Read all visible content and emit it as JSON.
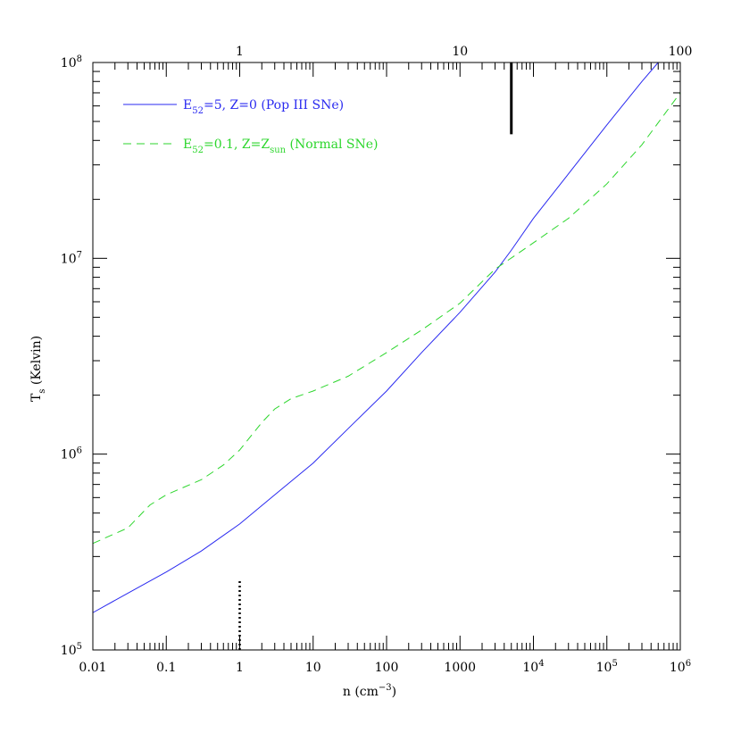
{
  "chart_data": {
    "type": "line",
    "xlabel": {
      "main": "n (cm",
      "sup": "−3",
      "close": ")"
    },
    "ylabel": {
      "main": "T",
      "sub": "s",
      "rest": " (Kelvin)"
    },
    "x_scale": "log",
    "y_scale": "log",
    "xlim": [
      0.01,
      1000000
    ],
    "ylim": [
      100000,
      100000000
    ],
    "x_tick_labels": [
      {
        "v": 0.01,
        "text": "0.01"
      },
      {
        "v": 0.1,
        "text": "0.1"
      },
      {
        "v": 1,
        "text": "1"
      },
      {
        "v": 10,
        "text": "10"
      },
      {
        "v": 100,
        "text": "100"
      },
      {
        "v": 1000,
        "text": "1000"
      },
      {
        "v": 10000,
        "base": "10",
        "sup": "4"
      },
      {
        "v": 100000,
        "base": "10",
        "sup": "5"
      },
      {
        "v": 1000000,
        "base": "10",
        "sup": "6"
      }
    ],
    "y_tick_labels": [
      {
        "v": 100000,
        "base": "10",
        "sup": "5"
      },
      {
        "v": 1000000,
        "base": "10",
        "sup": "6"
      },
      {
        "v": 10000000,
        "base": "10",
        "sup": "7"
      },
      {
        "v": 100000000,
        "base": "10",
        "sup": "8"
      }
    ],
    "top_tick_labels": [
      {
        "text": "1",
        "at_n": 1
      },
      {
        "text": "10",
        "at_n": 1000
      },
      {
        "text": "100",
        "at_n": 1000000
      }
    ],
    "series": [
      {
        "legend": {
          "pre": "E",
          "sub1": "52",
          "mid": "=5, Z=0 (Pop III SNe)"
        },
        "color": "#2a2af0",
        "style": "solid",
        "x": [
          0.01,
          0.03,
          0.1,
          0.3,
          1,
          3,
          10,
          30,
          100,
          300,
          1000,
          3000,
          5000,
          10000,
          30000,
          100000,
          300000,
          500000
        ],
        "y": [
          155000,
          195000,
          250000,
          320000,
          440000,
          620000,
          900000,
          1350000,
          2100000,
          3300000,
          5300000,
          8500000,
          11000000,
          16000000,
          27000000,
          48000000,
          80000000,
          100000000
        ]
      },
      {
        "legend": {
          "pre": "E",
          "sub1": "52",
          "mid": "=0.1, Z=Z",
          "sub2": "sun",
          "post": " (Normal SNe)"
        },
        "color": "#2cd62c",
        "style": "dashed",
        "x": [
          0.01,
          0.03,
          0.06,
          0.1,
          0.3,
          0.6,
          1,
          2,
          3,
          5,
          10,
          30,
          100,
          300,
          1000,
          3000,
          10000,
          30000,
          100000,
          300000,
          1000000
        ],
        "y": [
          350000,
          420000,
          550000,
          620000,
          740000,
          880000,
          1050000,
          1450000,
          1700000,
          1920000,
          2100000,
          2500000,
          3300000,
          4300000,
          5900000,
          8800000,
          12000000,
          16000000,
          24000000,
          38000000,
          70000000
        ]
      }
    ],
    "markers": [
      {
        "name": "solid-marker",
        "n": 5000,
        "y_from": 43000000,
        "y_to": 100000000,
        "style": "solid"
      },
      {
        "name": "dotted-marker",
        "n": 1,
        "y_from": 100000,
        "y_to": 230000,
        "style": "dotted"
      }
    ]
  }
}
